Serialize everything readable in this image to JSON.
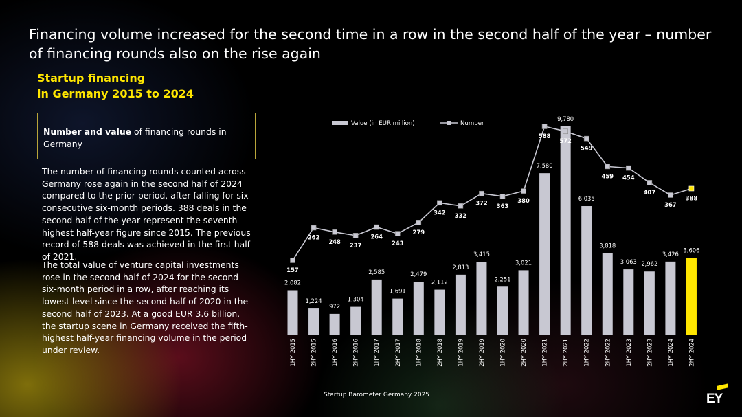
{
  "headline": "Financing volume increased for the second time in a row in the second half of the year – number of financing rounds also on the rise again",
  "subtitle_line1": "Startup financing",
  "subtitle_line2": "in Germany 2015 to 2024",
  "box": {
    "bold": "Number and value",
    "rest": " of financing rounds in Germany"
  },
  "paragraph1": "The number of financing rounds counted across Germany rose again in the second half of 2024 compared to the prior period, after falling for six consecutive six-month periods. 388 deals in the second half of the year represent the seventh-highest half-year figure since 2015. The previous record of 588 deals was achieved in the first half of 2021.",
  "paragraph2": "The total value of venture capital investments rose in the second half of 2024 for the second six-month period in a row, after reaching its lowest level since the second half of 2020 in the second half of 2023. At a good EUR 3.6 billion, the startup scene in Germany received the fifth-highest half-year financing volume in the period under review.",
  "footer": "Startup Barometer Germany 2025",
  "logo": "EY",
  "colors": {
    "bar": "#c8c8d2",
    "highlight_bar": "#ffe600",
    "line": "#c8c8d2",
    "accent": "#ffe600"
  },
  "chart_data": {
    "type": "bar",
    "categories": [
      "1HY 2015",
      "2HY 2015",
      "1HY 2016",
      "2HY 2016",
      "1HY 2017",
      "2HY 2017",
      "1HY 2018",
      "2HY 2018",
      "1HY 2019",
      "2HY 2019",
      "1HY 2020",
      "2HY 2020",
      "1HY 2021",
      "2HY 2021",
      "1HY 2022",
      "2HY 2022",
      "1HY 2023",
      "2HY 2023",
      "1HY 2024",
      "2HY 2024"
    ],
    "value_labels": [
      "2,082",
      "1,224",
      "972",
      "1,304",
      "2,585",
      "1,691",
      "2,479",
      "2,112",
      "2,813",
      "3,415",
      "2,251",
      "3,021",
      "7,580",
      "9,780",
      "6,035",
      "3,818",
      "3,063",
      "2,962",
      "3,426",
      "3,606"
    ],
    "number_labels": [
      "157",
      "262",
      "248",
      "237",
      "264",
      "243",
      "279",
      "342",
      "332",
      "372",
      "363",
      "380",
      "588",
      "572",
      "549",
      "459",
      "454",
      "407",
      "367",
      "388"
    ],
    "series": [
      {
        "name": "Value (in EUR million)",
        "type": "bar",
        "values": [
          2082,
          1224,
          972,
          1304,
          2585,
          1691,
          2479,
          2112,
          2813,
          3415,
          2251,
          3021,
          7580,
          9780,
          6035,
          3818,
          3063,
          2962,
          3426,
          3606
        ]
      },
      {
        "name": "Number",
        "type": "line",
        "values": [
          157,
          262,
          248,
          237,
          264,
          243,
          279,
          342,
          332,
          372,
          363,
          380,
          588,
          572,
          549,
          459,
          454,
          407,
          367,
          388
        ]
      }
    ],
    "highlight_last": true,
    "legend_position": "top",
    "grid": false
  }
}
